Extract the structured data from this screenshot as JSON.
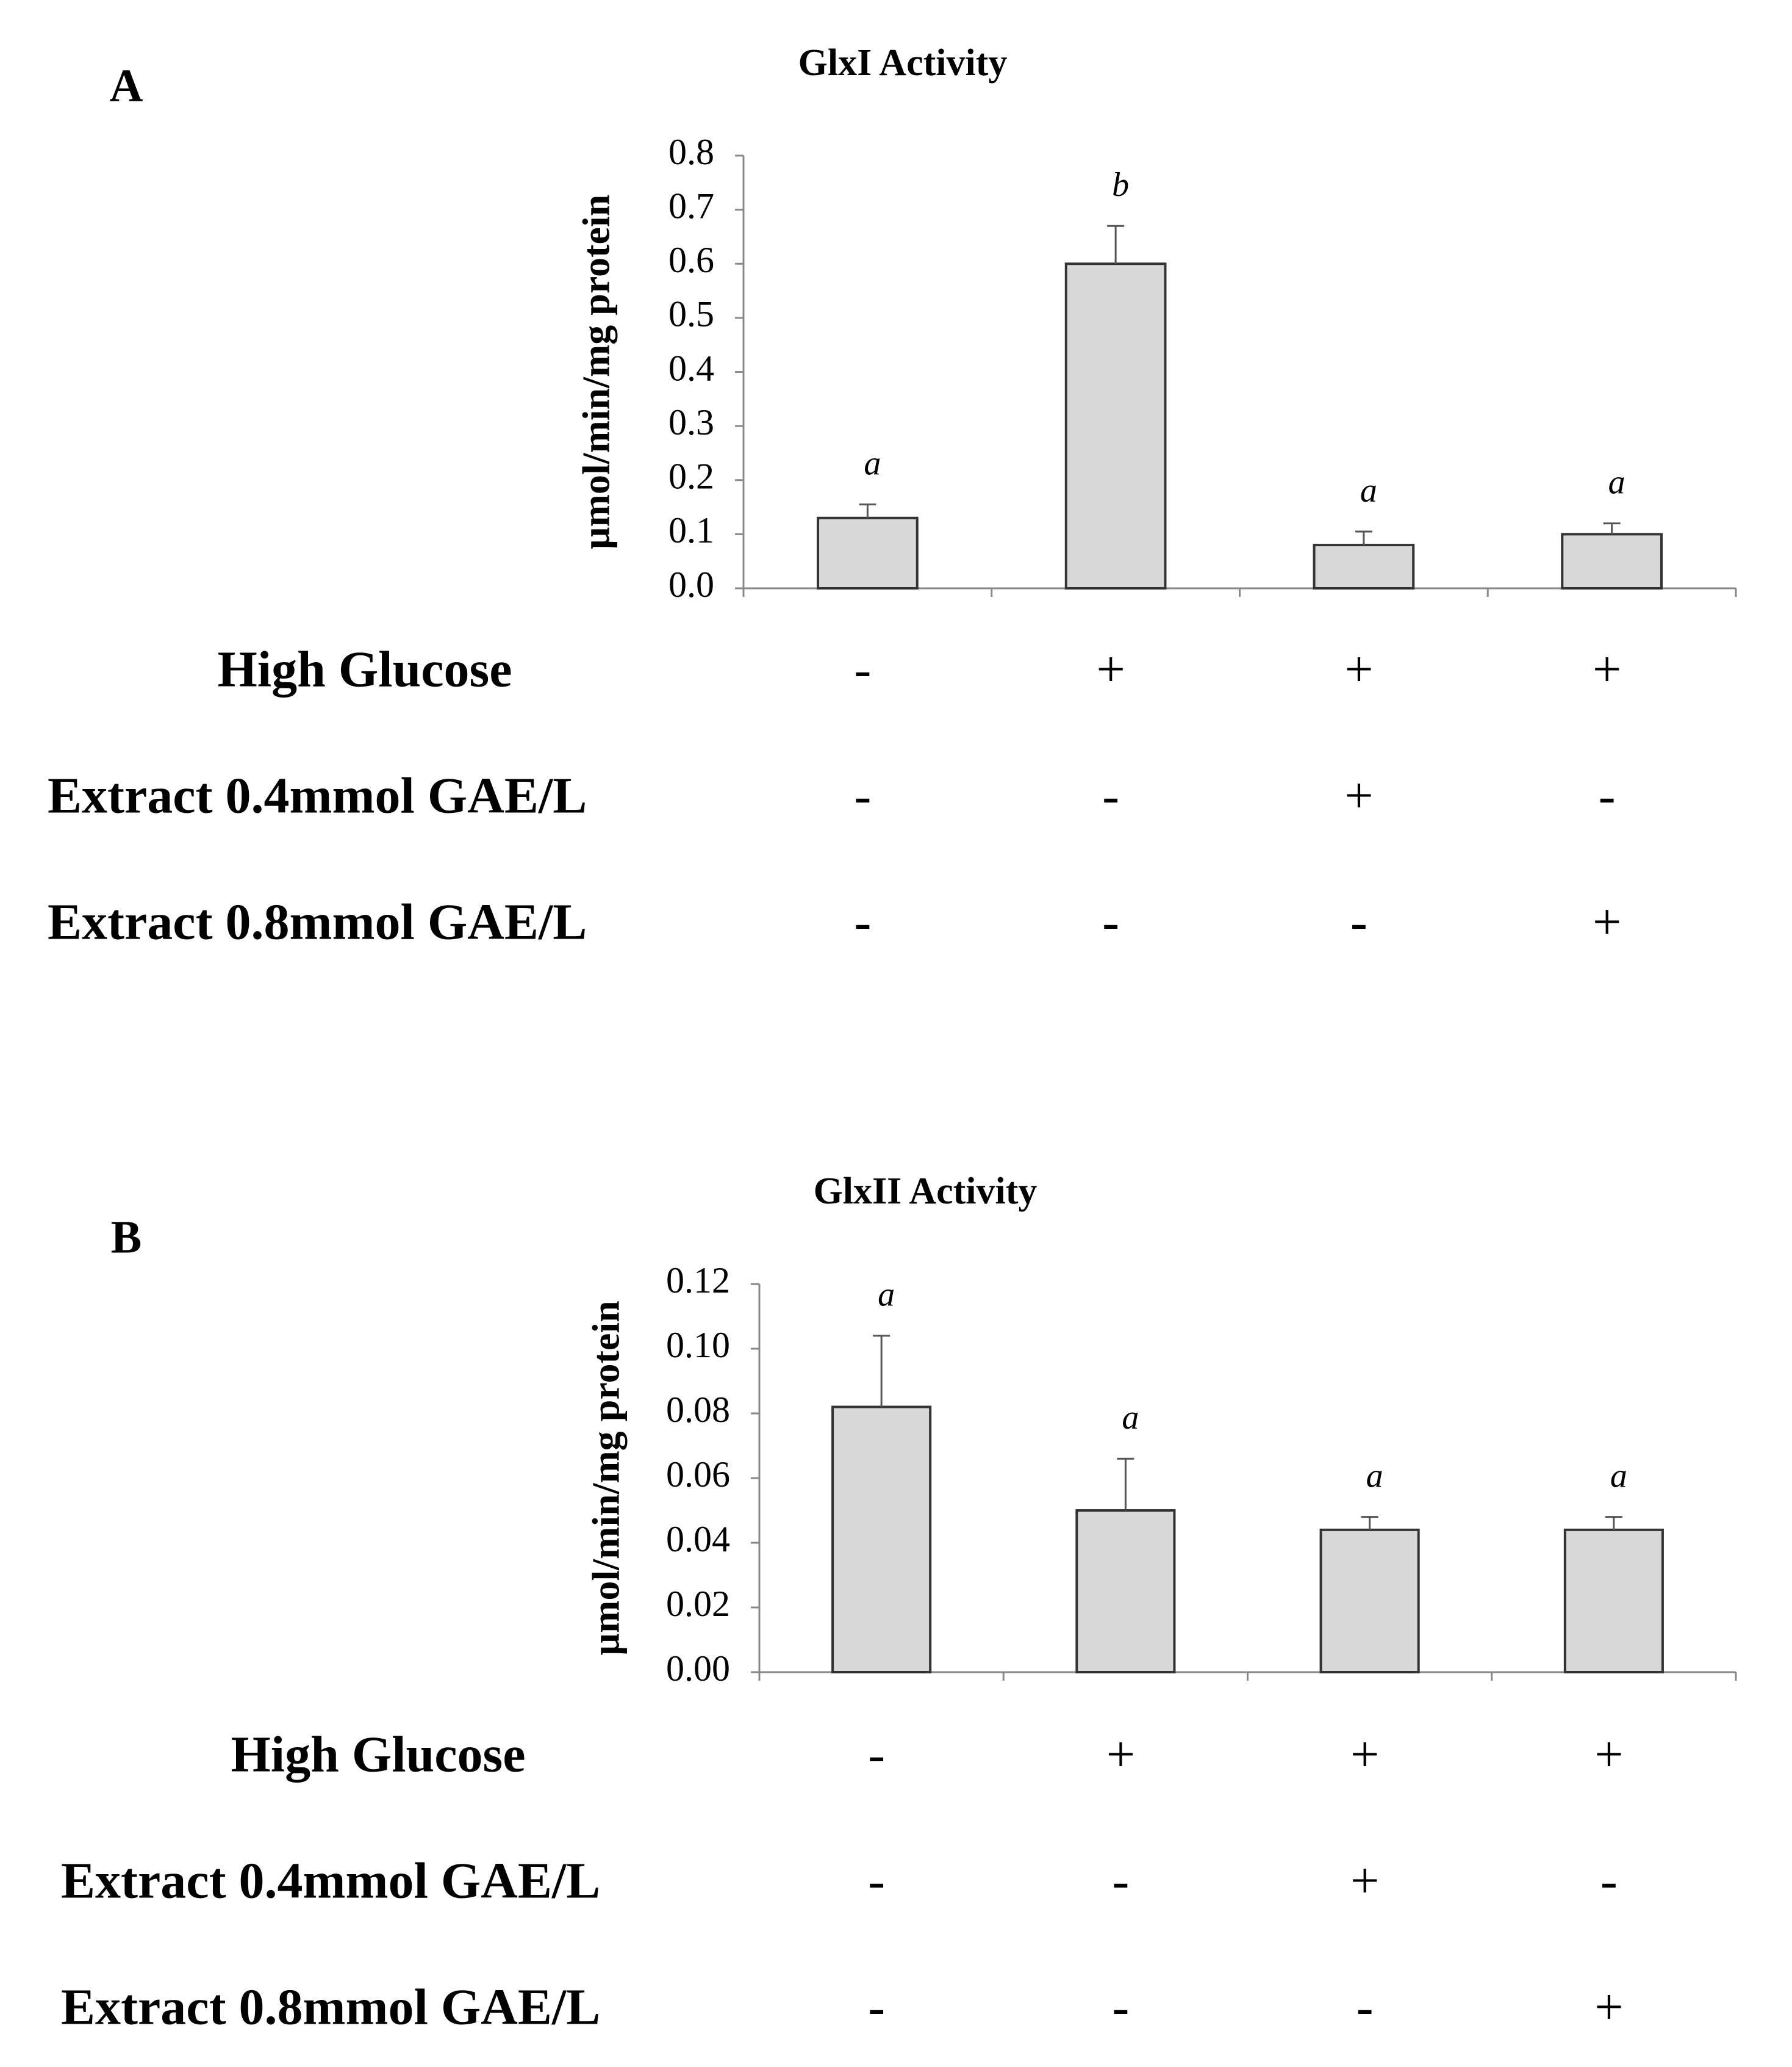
{
  "chart_data": [
    {
      "type": "bar",
      "panel": "A",
      "title": "GlxI Activity",
      "y_label": "µmol/min/mg protein",
      "values": [
        0.13,
        0.6,
        0.08,
        0.1
      ],
      "errors": [
        0.025,
        0.07,
        0.025,
        0.02
      ],
      "significance": [
        "a",
        "b",
        "a",
        "a"
      ],
      "color": "#d9d9d9",
      "ylim": [
        0,
        0.8
      ],
      "yticks": [
        {
          "value": 0,
          "label": "0.0"
        },
        0.1,
        0.2,
        0.3,
        0.4,
        0.5,
        0.6,
        0.7,
        0.8
      ],
      "conditions": [
        {
          "label": "High Glucose",
          "values": [
            "-",
            "+",
            "+",
            "+"
          ]
        },
        {
          "label": "Extract 0.4mmol GAE/L",
          "values": [
            "-",
            "-",
            "+",
            "-"
          ]
        },
        {
          "label": "Extract 0.8mmol GAE/L",
          "values": [
            "-",
            "-",
            "-",
            "+"
          ]
        }
      ]
    },
    {
      "type": "bar",
      "panel": "B",
      "title": "GlxII Activity",
      "y_label": "µmol/min/mg protein",
      "values": [
        0.082,
        0.05,
        0.044,
        0.044
      ],
      "errors": [
        0.022,
        0.016,
        0.004,
        0.004
      ],
      "significance": [
        "a",
        "a",
        "a",
        "a"
      ],
      "color": "#d9d9d9",
      "ylim": [
        0,
        0.12
      ],
      "yticks": [
        {
          "value": 0,
          "label": "0.00"
        },
        0.02,
        0.04,
        0.06,
        0.08,
        {
          "value": 0.1,
          "label": "0.10"
        },
        0.12
      ],
      "conditions": [
        {
          "label": "High Glucose",
          "values": [
            "-",
            "+",
            "+",
            "+"
          ]
        },
        {
          "label": "Extract 0.4mmol GAE/L",
          "values": [
            "-",
            "-",
            "+",
            "-"
          ]
        },
        {
          "label": "Extract 0.8mmol GAE/L",
          "values": [
            "-",
            "-",
            "-",
            "+"
          ]
        }
      ]
    }
  ]
}
